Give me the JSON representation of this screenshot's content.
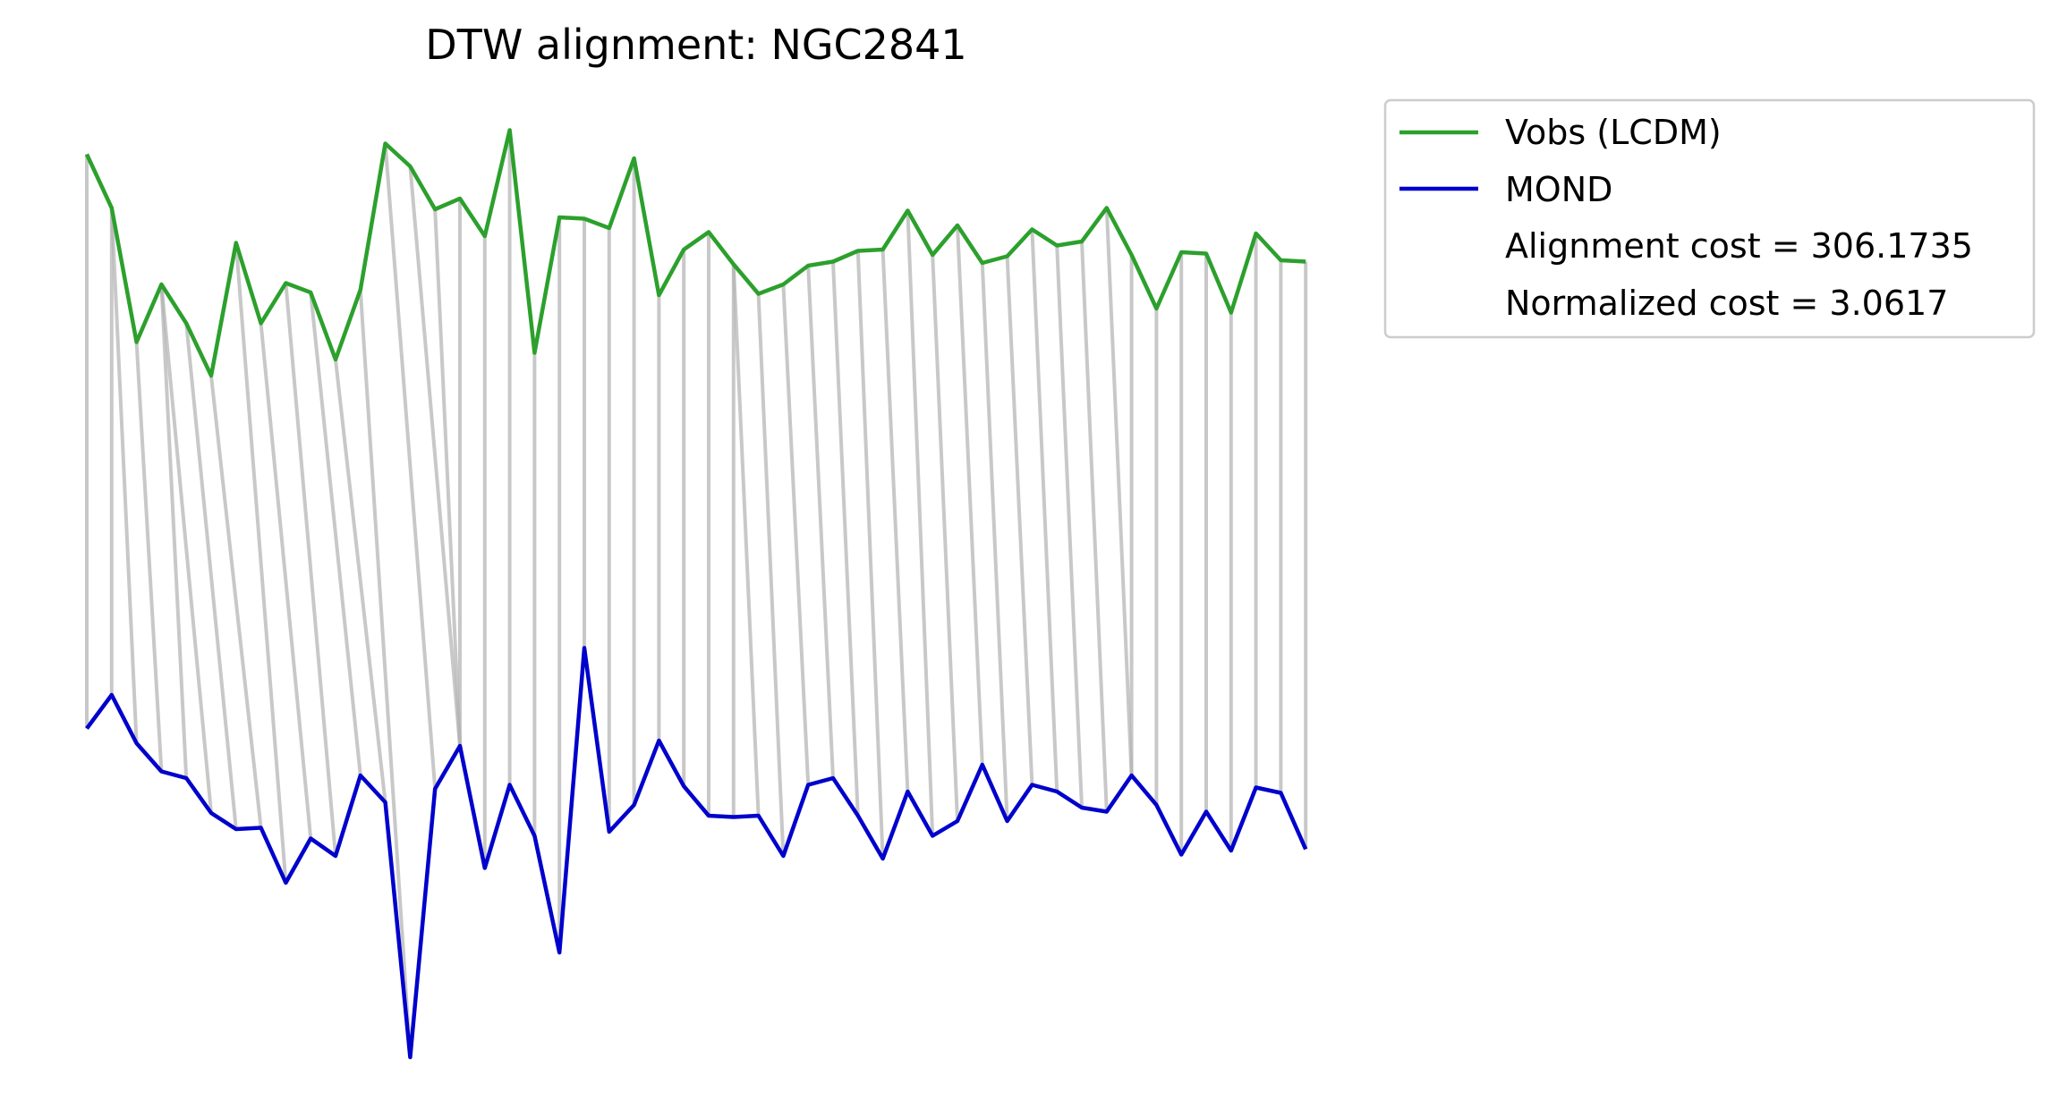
{
  "chart_data": {
    "type": "line",
    "title": "DTW alignment: NGC2841",
    "xlabel": "",
    "ylabel": "",
    "axes_visible": false,
    "grid": false,
    "legend_placement": "upper-right outside",
    "series": [
      {
        "name": "Vobs (LCDM)",
        "color": "#2ca02c",
        "values": [
          115.0,
          155.0,
          255.0,
          212.0,
          241.0,
          280.0,
          181.0,
          241.0,
          211.0,
          218.0,
          268.0,
          216.0,
          107.0,
          124.0,
          156.0,
          148.0,
          176.0,
          97.0,
          263.0,
          162.0,
          163.0,
          170.0,
          118.0,
          220.0,
          186.0,
          173.0,
          197.0,
          219.0,
          212.0,
          198.0,
          195.0,
          187.0,
          186.0,
          157.0,
          190.0,
          168.0,
          196.0,
          191.0,
          171.0,
          183.0,
          180.0,
          155.0,
          190.0,
          230.0,
          188.0,
          189.0,
          233.0,
          174.0,
          194.0,
          195.0
        ]
      },
      {
        "name": "MOND",
        "color": "#0000cc",
        "values": [
          543.0,
          518.0,
          554.0,
          575.0,
          580.0,
          606.0,
          618.0,
          617.0,
          658.0,
          625.0,
          638.0,
          578.0,
          598.0,
          788.0,
          588.0,
          556.0,
          647.0,
          585.0,
          623.0,
          710.0,
          483.0,
          620.0,
          600.0,
          552.0,
          586.0,
          608.0,
          609.0,
          608.0,
          638.0,
          585.0,
          580.0,
          608.0,
          640.0,
          590.0,
          623.0,
          612.0,
          570.0,
          612.0,
          585.0,
          590.0,
          602.0,
          605.0,
          578.0,
          600.0,
          637.0,
          605.0,
          634.0,
          587.0,
          591.0,
          633.0
        ]
      }
    ],
    "alignment_pairs": [
      [
        0,
        0
      ],
      [
        1,
        1
      ],
      [
        1,
        2
      ],
      [
        2,
        3
      ],
      [
        3,
        4
      ],
      [
        3,
        5
      ],
      [
        4,
        6
      ],
      [
        5,
        7
      ],
      [
        6,
        8
      ],
      [
        7,
        9
      ],
      [
        8,
        10
      ],
      [
        9,
        11
      ],
      [
        10,
        12
      ],
      [
        11,
        13
      ],
      [
        12,
        14
      ],
      [
        13,
        15
      ],
      [
        14,
        15
      ],
      [
        15,
        15
      ],
      [
        16,
        16
      ],
      [
        17,
        17
      ],
      [
        18,
        18
      ],
      [
        19,
        19
      ],
      [
        20,
        20
      ],
      [
        21,
        21
      ],
      [
        22,
        22
      ],
      [
        23,
        23
      ],
      [
        24,
        24
      ],
      [
        25,
        25
      ],
      [
        26,
        26
      ],
      [
        26,
        27
      ],
      [
        27,
        28
      ],
      [
        28,
        29
      ],
      [
        29,
        30
      ],
      [
        30,
        31
      ],
      [
        31,
        32
      ],
      [
        32,
        33
      ],
      [
        33,
        34
      ],
      [
        34,
        35
      ],
      [
        35,
        36
      ],
      [
        36,
        37
      ],
      [
        37,
        38
      ],
      [
        38,
        39
      ],
      [
        39,
        40
      ],
      [
        40,
        41
      ],
      [
        41,
        42
      ],
      [
        42,
        42
      ],
      [
        43,
        43
      ],
      [
        44,
        44
      ],
      [
        45,
        45
      ],
      [
        46,
        46
      ],
      [
        47,
        47
      ],
      [
        48,
        48
      ],
      [
        49,
        49
      ]
    ],
    "annotations": [
      "Alignment cost = 306.1735",
      "Normalized cost = 3.0617"
    ]
  },
  "colors": {
    "alignment_line": "#b3b3b3",
    "legend_border": "#cccccc"
  }
}
